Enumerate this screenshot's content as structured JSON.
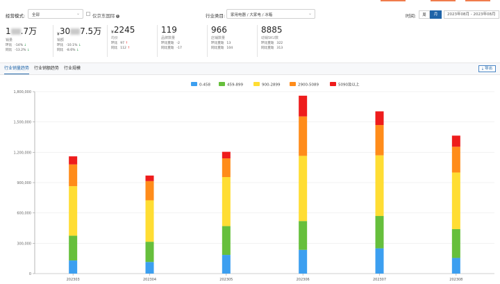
{
  "filters": {
    "mode_label": "经营模式:",
    "mode_value": "全部",
    "jd_intl_label": "仅京东国际",
    "category_label": "行业类目:",
    "category_value": "家用电器 / 大家电 / 冰箱",
    "time_label": "时间:",
    "week_btn": "周",
    "month_btn": "月",
    "date_range": "2023年08月 - 2023年08月"
  },
  "kpis": [
    {
      "value_left": "1",
      "value_right": ".7万",
      "currency": "",
      "label": "销量",
      "row1_label": "环比",
      "row1_value": "-14%",
      "row1_dir": "down",
      "row2_label": "同比",
      "row2_value": "-13.2%",
      "row2_dir": "down"
    },
    {
      "value_left": "30",
      "value_right": "7.5万",
      "currency": "¥",
      "label": "销额",
      "row1_label": "环比",
      "row1_value": "-10.1%",
      "row1_dir": "down",
      "row2_label": "同比",
      "row2_value": "-8.6%",
      "row2_dir": "down"
    },
    {
      "value_left": "2245",
      "value_right": "",
      "currency": "¥",
      "label": "均价",
      "row1_label": "环比",
      "row1_value": "97",
      "row1_dir": "up",
      "row2_label": "同比",
      "row2_value": "112",
      "row2_dir": "up"
    },
    {
      "value_left": "119",
      "value_right": "",
      "currency": "",
      "label": "品牌数量",
      "row1_label": "环比变动",
      "row1_value": "-2",
      "row1_dir": "",
      "row2_label": "同比变动",
      "row2_value": "-17",
      "row2_dir": ""
    },
    {
      "value_left": "966",
      "value_right": "",
      "currency": "",
      "label": "店铺数量",
      "row1_label": "环比变动",
      "row1_value": "13",
      "row1_dir": "",
      "row2_label": "同比变动",
      "row2_value": "104",
      "row2_dir": ""
    },
    {
      "value_left": "8885",
      "value_right": "",
      "currency": "",
      "label": "动销SKU数",
      "row1_label": "环比变动",
      "row1_value": "322",
      "row1_dir": "",
      "row2_label": "同比变动",
      "row2_value": "313",
      "row2_dir": ""
    }
  ],
  "tabs": [
    "行业销量趋势",
    "行业销额趋势",
    "行业规模"
  ],
  "export_label": "导出",
  "chart_data": {
    "type": "bar",
    "stacked": true,
    "categories": [
      "202303",
      "202304",
      "202305",
      "202306",
      "202307",
      "202308"
    ],
    "series": [
      {
        "name": "0-458",
        "color": "#3c9ff0",
        "values": [
          130000,
          115000,
          185000,
          235000,
          250000,
          155000
        ]
      },
      {
        "name": "459-899",
        "color": "#66bf3c",
        "values": [
          245000,
          200000,
          285000,
          285000,
          320000,
          285000
        ]
      },
      {
        "name": "900-2899",
        "color": "#ffdd33",
        "values": [
          490000,
          410000,
          485000,
          645000,
          600000,
          560000
        ]
      },
      {
        "name": "2900-5089",
        "color": "#ff8c1a",
        "values": [
          215000,
          190000,
          185000,
          390000,
          300000,
          255000
        ]
      },
      {
        "name": "5090及以上",
        "color": "#ee1c1c",
        "values": [
          80000,
          55000,
          65000,
          205000,
          135000,
          110000
        ]
      }
    ],
    "ylim": [
      0,
      1800000
    ],
    "yticks": [
      "0",
      "300,000",
      "600,000",
      "900,000",
      "1,200,000",
      "1,500,000",
      "1,800,000"
    ],
    "legend_position": "top-center",
    "grid": true
  }
}
